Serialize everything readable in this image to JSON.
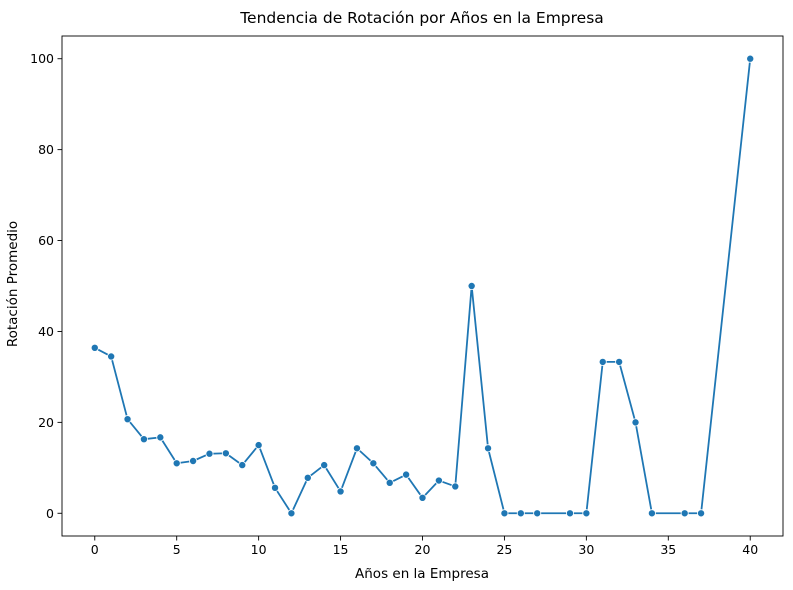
{
  "chart_data": {
    "type": "line",
    "title": "Tendencia de Rotación por Años en la Empresa",
    "xlabel": "Años en la Empresa",
    "ylabel": "Rotación Promedio",
    "xlim": [
      -2,
      42
    ],
    "ylim": [
      -5,
      105
    ],
    "xticks": [
      "0",
      "5",
      "10",
      "15",
      "20",
      "25",
      "30",
      "35",
      "40"
    ],
    "yticks": [
      "0",
      "20",
      "40",
      "60",
      "80",
      "100"
    ],
    "grid": false,
    "legend": "none",
    "series": [
      {
        "color": "#1f77b4",
        "marker": "circle",
        "x": [
          0,
          1,
          2,
          3,
          4,
          5,
          6,
          7,
          8,
          9,
          10,
          11,
          12,
          13,
          14,
          15,
          16,
          17,
          18,
          19,
          20,
          21,
          22,
          23,
          24,
          25,
          26,
          27,
          29,
          30,
          31,
          32,
          33,
          34,
          36,
          37,
          40
        ],
        "y": [
          36.4,
          34.5,
          20.7,
          16.3,
          16.7,
          11.0,
          11.5,
          13.1,
          13.2,
          10.6,
          15.0,
          5.6,
          0.0,
          7.8,
          10.6,
          4.8,
          14.3,
          11.0,
          6.7,
          8.5,
          3.4,
          7.2,
          5.9,
          50.0,
          14.3,
          0.0,
          0.0,
          0.0,
          0.0,
          0.0,
          33.3,
          33.3,
          20.0,
          0.0,
          0.0,
          0.0,
          100.0
        ]
      }
    ]
  }
}
